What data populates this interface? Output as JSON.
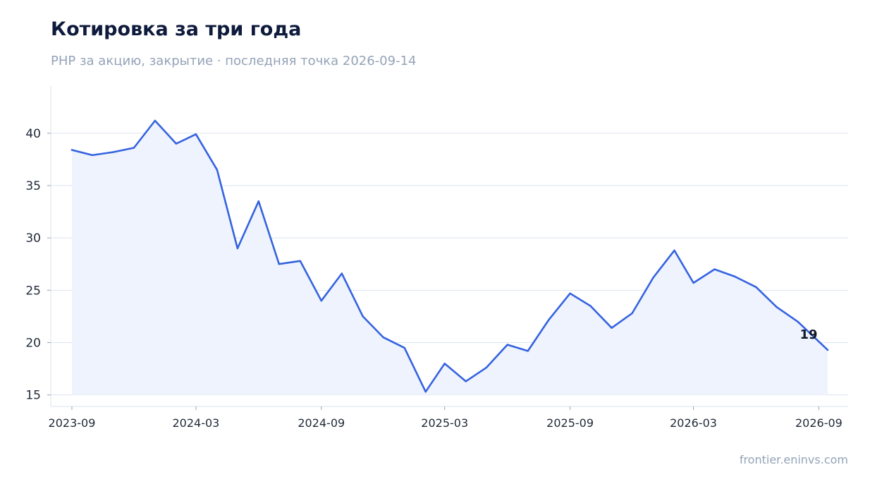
{
  "chart_data": {
    "type": "line",
    "title": "Котировка за три года",
    "subtitle": "РНР за акцию, закрытие · последняя точка 2026-09-14",
    "source": "frontier.eninvs.com",
    "xlabel": "",
    "ylabel": "",
    "x_start": "2023-09",
    "x_end": "2026-09",
    "xlim": [
      "2023-08-01",
      "2026-10-14"
    ],
    "ylim": [
      13.9,
      44.5
    ],
    "x_ticks": [
      "2023-09",
      "2024-03",
      "2024-09",
      "2025-03",
      "2025-09",
      "2026-03",
      "2026-09"
    ],
    "y_ticks": [
      15,
      20,
      25,
      30,
      35,
      40
    ],
    "grid": "horizontal",
    "area_fill": true,
    "colors": {
      "line": "#3563e0",
      "area": "#eef3fd",
      "grid": "#dde3f0",
      "axis": "#e2e6ee"
    },
    "last_value_label": "19",
    "series": [
      {
        "x": [
          "2023-09-01",
          "2023-10-01",
          "2023-11-01",
          "2023-12-01",
          "2024-01-01",
          "2024-02-01",
          "2024-03-01",
          "2024-04-01",
          "2024-05-01",
          "2024-06-01",
          "2024-07-01",
          "2024-08-01",
          "2024-09-01",
          "2024-10-01",
          "2024-11-01",
          "2024-12-01",
          "2025-01-01",
          "2025-02-01",
          "2025-03-01",
          "2025-04-01",
          "2025-05-01",
          "2025-06-01",
          "2025-07-01",
          "2025-08-01",
          "2025-09-01",
          "2025-10-01",
          "2025-11-01",
          "2025-12-01",
          "2026-01-01",
          "2026-02-01",
          "2026-03-01",
          "2026-04-01",
          "2026-05-01",
          "2026-06-01",
          "2026-07-01",
          "2026-08-01",
          "2026-09-14"
        ],
        "values": [
          38.4,
          37.9,
          38.2,
          38.6,
          41.2,
          39.0,
          39.9,
          36.5,
          29.0,
          33.5,
          27.5,
          27.8,
          24.0,
          26.6,
          22.5,
          20.5,
          19.5,
          15.3,
          18.0,
          16.3,
          17.6,
          19.8,
          19.2,
          22.2,
          24.7,
          23.5,
          21.4,
          22.8,
          26.2,
          28.8,
          25.7,
          27.0,
          26.3,
          25.3,
          23.4,
          22.0,
          19.3
        ]
      }
    ]
  }
}
